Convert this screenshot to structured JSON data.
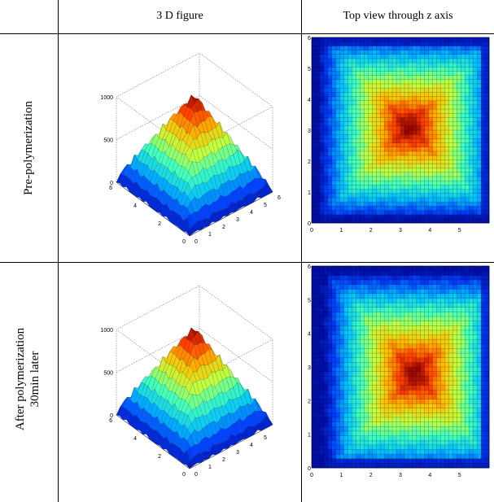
{
  "table": {
    "header": {
      "col1": "3 D figure",
      "col2": "Top view through z axis"
    },
    "rows": [
      {
        "label_lines": [
          "Pre-polymerization"
        ],
        "surface": {
          "z_ticks": [
            "1000",
            "500",
            "0"
          ],
          "y_ticks": [
            "6",
            "4",
            "2",
            "0"
          ],
          "x_ticks": [
            "0",
            "1",
            "2",
            "3",
            "4",
            "5",
            "6"
          ]
        },
        "topview": {
          "x_ticks": [
            "0",
            "1",
            "2",
            "3",
            "4",
            "5"
          ],
          "y_ticks": [
            "6",
            "5",
            "4",
            "3",
            "2",
            "1",
            "0"
          ]
        }
      },
      {
        "label_lines": [
          "After  polymerization",
          "30min later"
        ],
        "surface": {
          "z_ticks": [
            "1000",
            "500",
            "0"
          ],
          "y_ticks": [
            "6",
            "4",
            "2",
            "0"
          ],
          "x_ticks": [
            "0",
            "1",
            "2",
            "3",
            "4",
            "5"
          ]
        },
        "topview": {
          "x_ticks": [
            "0",
            "1",
            "2",
            "3",
            "4",
            "5"
          ],
          "y_ticks": [
            "6",
            "5",
            "4",
            "3",
            "2",
            "1",
            "0"
          ]
        }
      }
    ]
  },
  "colors": {
    "colormap": [
      "#00008f",
      "#0040ff",
      "#00c0ff",
      "#40ffbf",
      "#c0ff40",
      "#ffbf00",
      "#ff4000",
      "#8f0000"
    ]
  }
}
